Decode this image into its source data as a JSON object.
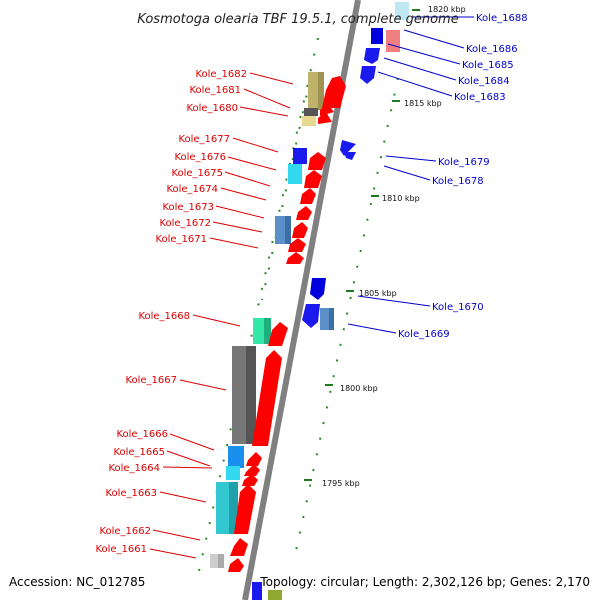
{
  "title": "Kosmotoga olearia TBF 19.5.1, complete genome",
  "footer": {
    "accession": "Accession: NC_012785",
    "topology": "Topology: circular; Length: 2,302,126 bp; Genes: 2,170"
  },
  "colors": {
    "forward_label": "#dd0000",
    "reverse_label": "#0000cc",
    "backbone": "#808080"
  },
  "ticks": [
    "1820 kbp",
    "1815 kbp",
    "1810 kbp",
    "1805 kbp",
    "1800 kbp",
    "1795 kbp"
  ],
  "forward_labels": [
    "Kole_1682",
    "Kole_1681",
    "Kole_1680",
    "Kole_1677",
    "Kole_1676",
    "Kole_1675",
    "Kole_1674",
    "Kole_1673",
    "Kole_1672",
    "Kole_1671",
    "Kole_1668",
    "Kole_1667",
    "Kole_1666",
    "Kole_1665",
    "Kole_1664",
    "Kole_1663",
    "Kole_1662",
    "Kole_1661"
  ],
  "reverse_labels": [
    "Kole_1688",
    "Kole_1686",
    "Kole_1685",
    "Kole_1684",
    "Kole_1683",
    "Kole_1679",
    "Kole_1678",
    "Kole_1670",
    "Kole_1669"
  ]
}
